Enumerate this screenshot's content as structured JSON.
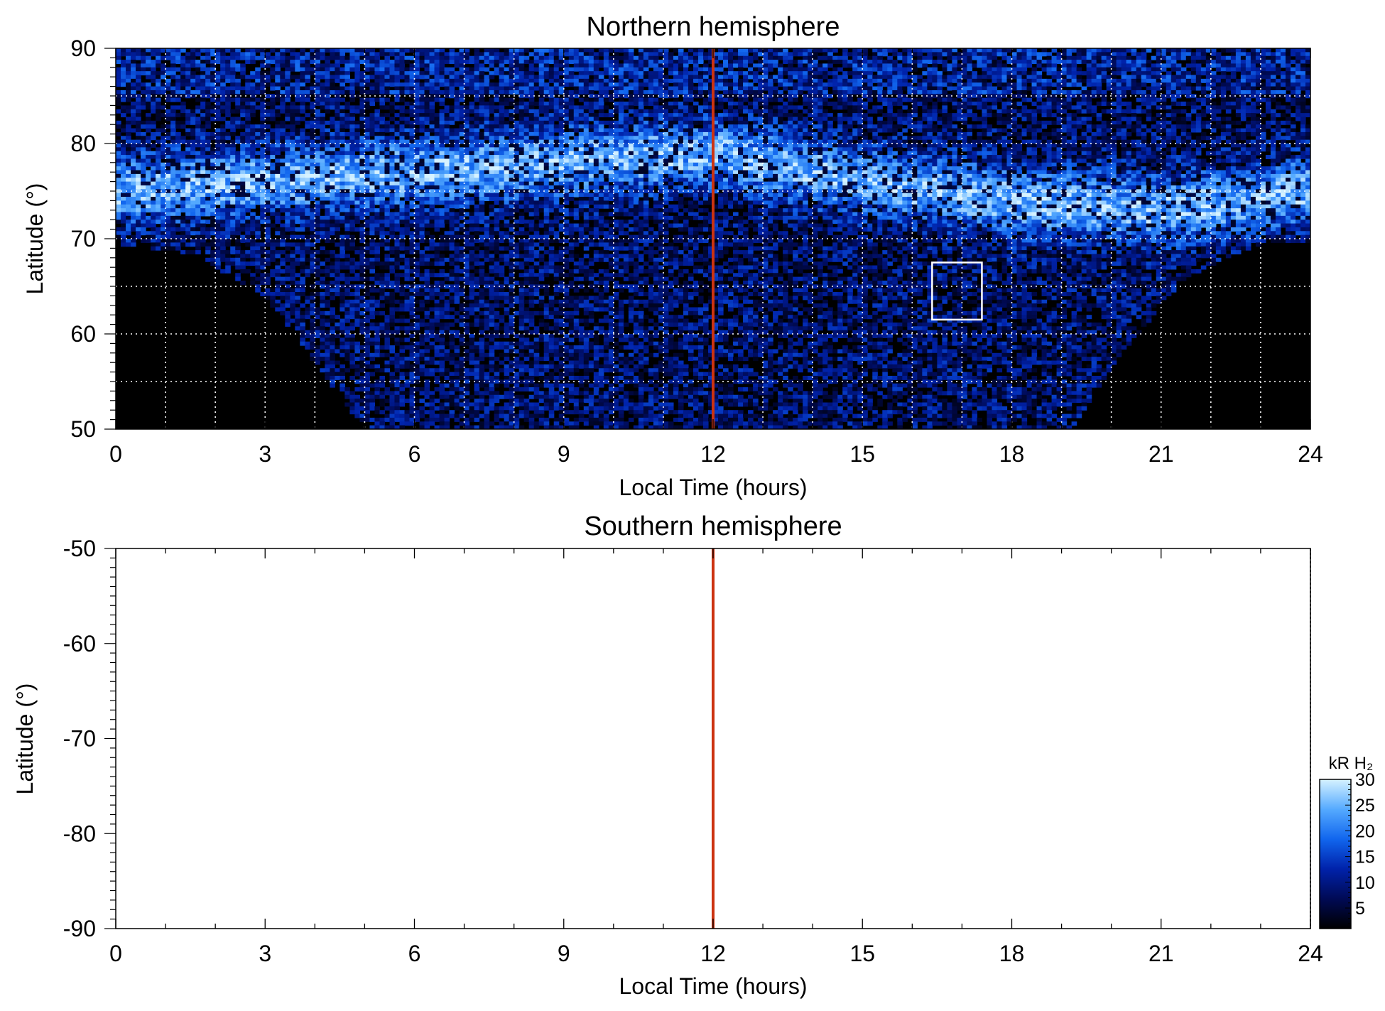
{
  "chart_data": [
    {
      "type": "heatmap",
      "title": "Northern hemisphere",
      "xlabel": "Local Time (hours)",
      "ylabel": "Latitude (°)",
      "xlim": [
        0,
        24
      ],
      "ylim": [
        50,
        90
      ],
      "x_ticks": [
        0,
        3,
        6,
        9,
        12,
        15,
        18,
        21,
        24
      ],
      "y_ticks": [
        50,
        60,
        70,
        80,
        90
      ],
      "x_tick_labels": [
        "0",
        "3",
        "6",
        "9",
        "12",
        "15",
        "18",
        "21",
        "24"
      ],
      "y_tick_labels": [
        "50",
        "60",
        "70",
        "80",
        "90"
      ],
      "grid": true,
      "grid_x_step": 1,
      "grid_y_values": [
        55,
        60,
        65,
        70,
        75,
        80,
        85
      ],
      "reference_line": {
        "x": 12,
        "color": "#cc3311"
      },
      "highlight_box": {
        "x0": 16.4,
        "x1": 17.4,
        "y0": 61.5,
        "y1": 67.5,
        "color": "#ffffff"
      },
      "emission_summary": {
        "auroral_oval": {
          "lat_center_by_lt": [
            [
              0,
              75
            ],
            [
              6,
              77
            ],
            [
              12,
              79
            ],
            [
              15,
              76
            ],
            [
              18,
              74
            ],
            [
              21,
              73
            ],
            [
              24,
              75
            ]
          ],
          "peak_kR": 28
        },
        "no_data_regions": [
          {
            "description_lt_range": [
              0,
              5
            ],
            "lat_max_at_lt": [
              [
                0,
                69.5
              ],
              [
                1.5,
                68.5
              ],
              [
                3,
                64
              ],
              [
                4,
                57
              ],
              [
                5,
                50
              ]
            ]
          },
          {
            "description_lt_range": [
              19,
              24
            ],
            "lat_max_at_lt": [
              [
                19.2,
                50
              ],
              [
                20.2,
                58
              ],
              [
                21.5,
                66
              ],
              [
                23,
                69.5
              ],
              [
                24,
                69.5
              ]
            ]
          }
        ],
        "background_kR": 6
      }
    },
    {
      "type": "heatmap",
      "title": "Southern hemisphere",
      "xlabel": "Local Time (hours)",
      "ylabel": "Latitude (°)",
      "xlim": [
        0,
        24
      ],
      "ylim": [
        -90,
        -50
      ],
      "x_ticks": [
        0,
        3,
        6,
        9,
        12,
        15,
        18,
        21,
        24
      ],
      "y_ticks": [
        -50,
        -60,
        -70,
        -80,
        -90
      ],
      "x_tick_labels": [
        "0",
        "3",
        "6",
        "9",
        "12",
        "15",
        "18",
        "21",
        "24"
      ],
      "y_tick_labels": [
        "-50",
        "-60",
        "-70",
        "-80",
        "-90"
      ],
      "grid": false,
      "values": [],
      "reference_line": {
        "x": 12,
        "color": "#cc3311"
      }
    }
  ],
  "colorbar": {
    "label": "kR H₂",
    "range": [
      1,
      30
    ],
    "ticks": [
      5,
      10,
      15,
      20,
      25,
      30
    ],
    "tick_labels": [
      "5",
      "10",
      "15",
      "20",
      "25",
      "30"
    ],
    "colors": [
      "#000000",
      "#000a55",
      "#0022aa",
      "#1166ee",
      "#55aaff",
      "#d6f2ff"
    ]
  }
}
